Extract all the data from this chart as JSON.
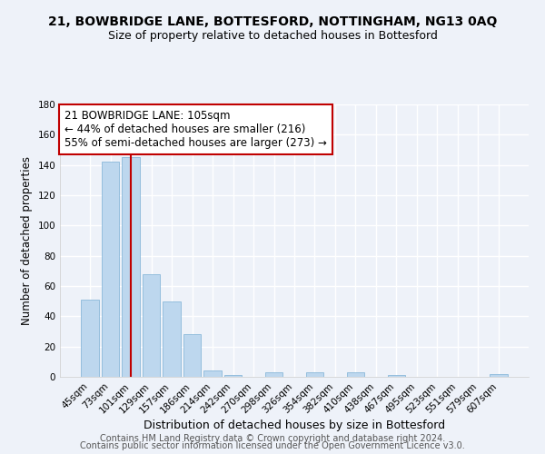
{
  "title1": "21, BOWBRIDGE LANE, BOTTESFORD, NOTTINGHAM, NG13 0AQ",
  "title2": "Size of property relative to detached houses in Bottesford",
  "xlabel": "Distribution of detached houses by size in Bottesford",
  "ylabel": "Number of detached properties",
  "bar_labels": [
    "45sqm",
    "73sqm",
    "101sqm",
    "129sqm",
    "157sqm",
    "186sqm",
    "214sqm",
    "242sqm",
    "270sqm",
    "298sqm",
    "326sqm",
    "354sqm",
    "382sqm",
    "410sqm",
    "438sqm",
    "467sqm",
    "495sqm",
    "523sqm",
    "551sqm",
    "579sqm",
    "607sqm"
  ],
  "bar_values": [
    51,
    142,
    145,
    68,
    50,
    28,
    4,
    1,
    0,
    3,
    0,
    3,
    0,
    3,
    0,
    1,
    0,
    0,
    0,
    0,
    2
  ],
  "bar_color": "#bdd7ee",
  "bar_edge_color": "#7bafd4",
  "vline_x": 2,
  "vline_color": "#c00000",
  "annotation_box_text": "21 BOWBRIDGE LANE: 105sqm\n← 44% of detached houses are smaller (216)\n55% of semi-detached houses are larger (273) →",
  "ylim": [
    0,
    180
  ],
  "yticks": [
    0,
    20,
    40,
    60,
    80,
    100,
    120,
    140,
    160,
    180
  ],
  "footer_line1": "Contains HM Land Registry data © Crown copyright and database right 2024.",
  "footer_line2": "Contains public sector information licensed under the Open Government Licence v3.0.",
  "bg_color": "#eef2f9",
  "plot_bg_color": "#eef2f9",
  "grid_color": "#ffffff",
  "title1_fontsize": 10,
  "title2_fontsize": 9,
  "xlabel_fontsize": 9,
  "ylabel_fontsize": 8.5,
  "annotation_fontsize": 8.5,
  "tick_fontsize": 7.5,
  "footer_fontsize": 7
}
